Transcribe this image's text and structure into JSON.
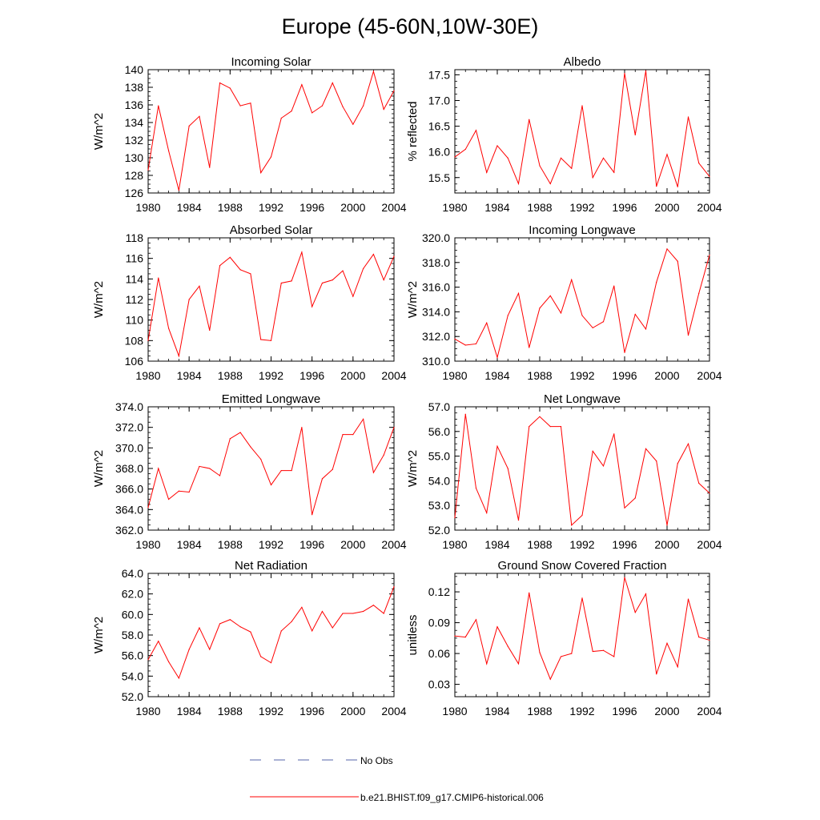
{
  "figure_title": "Europe (45-60N,10W-30E)",
  "colors": {
    "model_line": "#ff0000",
    "obs_line": "#5566aa",
    "axes": "#000000"
  },
  "legend": [
    {
      "label": "No Obs",
      "style": "dashed",
      "color": "#5566aa"
    },
    {
      "label": "b.e21.BHIST.f09_g17.CMIP6-historical.006",
      "style": "solid",
      "color": "#ff0000"
    }
  ],
  "chart_data": [
    {
      "type": "line",
      "title": "Incoming Solar",
      "xlabel": "",
      "ylabel": "W/m^2",
      "xlim": [
        1980,
        2004
      ],
      "ylim": [
        126,
        140
      ],
      "xticks": [
        1980,
        1984,
        1988,
        1992,
        1996,
        2000,
        2004
      ],
      "xtick_labels": [
        "1980",
        "1984",
        "1988",
        "1992",
        "1996",
        "2000",
        "2004"
      ],
      "yticks": [
        126,
        128,
        130,
        132,
        134,
        136,
        138,
        140
      ],
      "ytick_labels": [
        "126",
        "128",
        "130",
        "132",
        "134",
        "136",
        "138",
        "140"
      ],
      "x": [
        1980,
        1981,
        1982,
        1983,
        1984,
        1985,
        1986,
        1987,
        1988,
        1989,
        1990,
        1991,
        1992,
        1993,
        1994,
        1995,
        1996,
        1997,
        1998,
        1999,
        2000,
        2001,
        2002,
        2003,
        2004
      ],
      "series": [
        {
          "name": "b.e21.BHIST.f09_g17.CMIP6-historical.006",
          "values": [
            128.6,
            135.9,
            130.8,
            126.3,
            133.6,
            134.7,
            128.9,
            138.5,
            137.9,
            135.9,
            136.2,
            128.3,
            130.1,
            134.5,
            135.3,
            138.3,
            135.1,
            135.9,
            138.5,
            135.8,
            133.8,
            135.9,
            139.8,
            135.5,
            137.6
          ]
        }
      ]
    },
    {
      "type": "line",
      "title": "Albedo",
      "xlabel": "",
      "ylabel": "% reflected",
      "xlim": [
        1980,
        2004
      ],
      "ylim": [
        15.2,
        17.6
      ],
      "xticks": [
        1980,
        1984,
        1988,
        1992,
        1996,
        2000,
        2004
      ],
      "xtick_labels": [
        "1980",
        "1984",
        "1988",
        "1992",
        "1996",
        "2000",
        "2004"
      ],
      "yticks": [
        15.5,
        16.0,
        16.5,
        17.0,
        17.5
      ],
      "ytick_labels": [
        "15.5",
        "16.0",
        "16.5",
        "17.0",
        "17.5"
      ],
      "x": [
        1980,
        1981,
        1982,
        1983,
        1984,
        1985,
        1986,
        1987,
        1988,
        1989,
        1990,
        1991,
        1992,
        1993,
        1994,
        1995,
        1996,
        1997,
        1998,
        1999,
        2000,
        2001,
        2002,
        2003,
        2004
      ],
      "series": [
        {
          "name": "b.e21.BHIST.f09_g17.CMIP6-historical.006",
          "values": [
            15.9,
            16.05,
            16.42,
            15.6,
            16.12,
            15.88,
            15.38,
            16.63,
            15.73,
            15.38,
            15.88,
            15.68,
            16.9,
            15.5,
            15.88,
            15.6,
            17.53,
            16.33,
            17.58,
            15.33,
            15.95,
            15.32,
            16.68,
            15.78,
            15.52
          ]
        }
      ]
    },
    {
      "type": "line",
      "title": "Absorbed Solar",
      "xlabel": "",
      "ylabel": "W/m^2",
      "xlim": [
        1980,
        2004
      ],
      "ylim": [
        106,
        118
      ],
      "xticks": [
        1980,
        1984,
        1988,
        1992,
        1996,
        2000,
        2004
      ],
      "xtick_labels": [
        "1980",
        "1984",
        "1988",
        "1992",
        "1996",
        "2000",
        "2004"
      ],
      "yticks": [
        106,
        108,
        110,
        112,
        114,
        116,
        118
      ],
      "ytick_labels": [
        "106",
        "108",
        "110",
        "112",
        "114",
        "116",
        "118"
      ],
      "x": [
        1980,
        1981,
        1982,
        1983,
        1984,
        1985,
        1986,
        1987,
        1988,
        1989,
        1990,
        1991,
        1992,
        1993,
        1994,
        1995,
        1996,
        1997,
        1998,
        1999,
        2000,
        2001,
        2002,
        2003,
        2004
      ],
      "series": [
        {
          "name": "b.e21.BHIST.f09_g17.CMIP6-historical.006",
          "values": [
            108.0,
            114.1,
            109.2,
            106.5,
            112.0,
            113.3,
            109.0,
            115.3,
            116.1,
            114.9,
            114.5,
            108.1,
            108.0,
            113.6,
            113.8,
            116.6,
            111.3,
            113.6,
            113.9,
            114.8,
            112.3,
            115.0,
            116.4,
            113.9,
            116.2
          ]
        }
      ]
    },
    {
      "type": "line",
      "title": "Incoming Longwave",
      "xlabel": "",
      "ylabel": "W/m^2",
      "xlim": [
        1980,
        2004
      ],
      "ylim": [
        310.0,
        320.0
      ],
      "xticks": [
        1980,
        1984,
        1988,
        1992,
        1996,
        2000,
        2004
      ],
      "xtick_labels": [
        "1980",
        "1984",
        "1988",
        "1992",
        "1996",
        "2000",
        "2004"
      ],
      "yticks": [
        310,
        312,
        314,
        316,
        318,
        320
      ],
      "ytick_labels": [
        "310.0",
        "312.0",
        "314.0",
        "316.0",
        "318.0",
        "320.0"
      ],
      "x": [
        1980,
        1981,
        1982,
        1983,
        1984,
        1985,
        1986,
        1987,
        1988,
        1989,
        1990,
        1991,
        1992,
        1993,
        1994,
        1995,
        1996,
        1997,
        1998,
        1999,
        2000,
        2001,
        2002,
        2003,
        2004
      ],
      "series": [
        {
          "name": "b.e21.BHIST.f09_g17.CMIP6-historical.006",
          "values": [
            311.8,
            311.3,
            311.4,
            313.1,
            310.3,
            313.7,
            315.5,
            311.1,
            314.3,
            315.3,
            313.9,
            316.6,
            313.7,
            312.7,
            313.2,
            316.1,
            310.7,
            313.8,
            312.6,
            316.4,
            319.1,
            318.1,
            312.1,
            315.5,
            318.6
          ]
        }
      ]
    },
    {
      "type": "line",
      "title": "Emitted Longwave",
      "xlabel": "",
      "ylabel": "W/m^2",
      "xlim": [
        1980,
        2004
      ],
      "ylim": [
        362.0,
        374.0
      ],
      "xticks": [
        1980,
        1984,
        1988,
        1992,
        1996,
        2000,
        2004
      ],
      "xtick_labels": [
        "1980",
        "1984",
        "1988",
        "1992",
        "1996",
        "2000",
        "2004"
      ],
      "yticks": [
        362,
        364,
        366,
        368,
        370,
        372,
        374
      ],
      "ytick_labels": [
        "362.0",
        "364.0",
        "366.0",
        "368.0",
        "370.0",
        "372.0",
        "374.0"
      ],
      "x": [
        1980,
        1981,
        1982,
        1983,
        1984,
        1985,
        1986,
        1987,
        1988,
        1989,
        1990,
        1991,
        1992,
        1993,
        1994,
        1995,
        1996,
        1997,
        1998,
        1999,
        2000,
        2001,
        2002,
        2003,
        2004
      ],
      "series": [
        {
          "name": "b.e21.BHIST.f09_g17.CMIP6-historical.006",
          "values": [
            364.2,
            368.0,
            365.0,
            365.8,
            365.7,
            368.2,
            368.0,
            367.3,
            370.9,
            371.5,
            370.1,
            368.9,
            366.4,
            367.8,
            367.8,
            372.0,
            363.5,
            367.0,
            367.9,
            371.3,
            371.3,
            372.8,
            367.6,
            369.3,
            372.0
          ]
        }
      ]
    },
    {
      "type": "line",
      "title": "Net Longwave",
      "xlabel": "",
      "ylabel": "W/m^2",
      "xlim": [
        1980,
        2004
      ],
      "ylim": [
        52.0,
        57.0
      ],
      "xticks": [
        1980,
        1984,
        1988,
        1992,
        1996,
        2000,
        2004
      ],
      "xtick_labels": [
        "1980",
        "1984",
        "1988",
        "1992",
        "1996",
        "2000",
        "2004"
      ],
      "yticks": [
        52,
        53,
        54,
        55,
        56,
        57
      ],
      "ytick_labels": [
        "52.0",
        "53.0",
        "54.0",
        "55.0",
        "56.0",
        "57.0"
      ],
      "x": [
        1980,
        1981,
        1982,
        1983,
        1984,
        1985,
        1986,
        1987,
        1988,
        1989,
        1990,
        1991,
        1992,
        1993,
        1994,
        1995,
        1996,
        1997,
        1998,
        1999,
        2000,
        2001,
        2002,
        2003,
        2004
      ],
      "series": [
        {
          "name": "b.e21.BHIST.f09_g17.CMIP6-historical.006",
          "values": [
            52.5,
            56.7,
            53.7,
            52.7,
            55.4,
            54.5,
            52.4,
            56.2,
            56.6,
            56.2,
            56.2,
            52.2,
            52.6,
            55.2,
            54.6,
            55.9,
            52.9,
            53.3,
            55.3,
            54.8,
            52.2,
            54.7,
            55.5,
            53.9,
            53.5
          ]
        }
      ]
    },
    {
      "type": "line",
      "title": "Net Radiation",
      "xlabel": "",
      "ylabel": "W/m^2",
      "xlim": [
        1980,
        2004
      ],
      "ylim": [
        52.0,
        64.0
      ],
      "xticks": [
        1980,
        1984,
        1988,
        1992,
        1996,
        2000,
        2004
      ],
      "xtick_labels": [
        "1980",
        "1984",
        "1988",
        "1992",
        "1996",
        "2000",
        "2004"
      ],
      "yticks": [
        52,
        54,
        56,
        58,
        60,
        62,
        64
      ],
      "ytick_labels": [
        "52.0",
        "54.0",
        "56.0",
        "58.0",
        "60.0",
        "62.0",
        "64.0"
      ],
      "x": [
        1980,
        1981,
        1982,
        1983,
        1984,
        1985,
        1986,
        1987,
        1988,
        1989,
        1990,
        1991,
        1992,
        1993,
        1994,
        1995,
        1996,
        1997,
        1998,
        1999,
        2000,
        2001,
        2002,
        2003,
        2004
      ],
      "series": [
        {
          "name": "b.e21.BHIST.f09_g17.CMIP6-historical.006",
          "values": [
            55.6,
            57.4,
            55.4,
            53.8,
            56.6,
            58.7,
            56.6,
            59.1,
            59.5,
            58.8,
            58.3,
            55.9,
            55.3,
            58.4,
            59.3,
            60.7,
            58.4,
            60.3,
            58.7,
            60.1,
            60.1,
            60.3,
            60.9,
            60.1,
            62.7
          ]
        }
      ]
    },
    {
      "type": "line",
      "title": "Ground Snow Covered Fraction",
      "xlabel": "",
      "ylabel": "unitless",
      "xlim": [
        1980,
        2004
      ],
      "ylim": [
        0.018,
        0.138
      ],
      "xticks": [
        1980,
        1984,
        1988,
        1992,
        1996,
        2000,
        2004
      ],
      "xtick_labels": [
        "1980",
        "1984",
        "1988",
        "1992",
        "1996",
        "2000",
        "2004"
      ],
      "yticks": [
        0.03,
        0.06,
        0.09,
        0.12
      ],
      "ytick_labels": [
        "0.03",
        "0.06",
        "0.09",
        "0.12"
      ],
      "x": [
        1980,
        1981,
        1982,
        1983,
        1984,
        1985,
        1986,
        1987,
        1988,
        1989,
        1990,
        1991,
        1992,
        1993,
        1994,
        1995,
        1996,
        1997,
        1998,
        1999,
        2000,
        2001,
        2002,
        2003,
        2004
      ],
      "series": [
        {
          "name": "b.e21.BHIST.f09_g17.CMIP6-historical.006",
          "values": [
            0.077,
            0.076,
            0.093,
            0.05,
            0.086,
            0.067,
            0.05,
            0.119,
            0.061,
            0.035,
            0.057,
            0.06,
            0.114,
            0.062,
            0.063,
            0.057,
            0.134,
            0.1,
            0.118,
            0.04,
            0.07,
            0.047,
            0.113,
            0.076,
            0.073
          ]
        }
      ]
    }
  ]
}
